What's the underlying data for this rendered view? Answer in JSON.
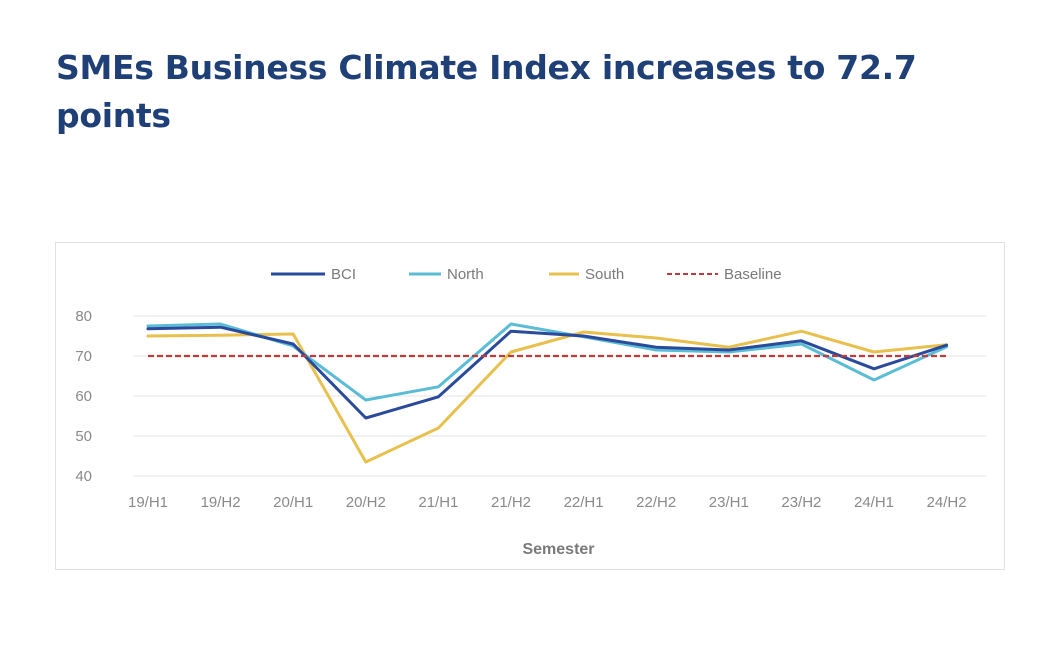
{
  "article": {
    "headline": "SMEs Business Climate Index increases to 72.7 points"
  },
  "chart_data": {
    "type": "line",
    "title": "",
    "xlabel": "Semester",
    "ylabel": "",
    "ylim": [
      40,
      80
    ],
    "yticks": [
      40,
      50,
      60,
      70,
      80
    ],
    "grid": true,
    "legend_position": "top-center",
    "categories": [
      "19/H1",
      "19/H2",
      "20/H1",
      "20/H2",
      "21/H1",
      "21/H2",
      "22/H1",
      "22/H2",
      "23/H1",
      "23/H2",
      "24/H1",
      "24/H2"
    ],
    "series": [
      {
        "name": "BCI",
        "color": "#2a4b9b",
        "style": "solid",
        "values": [
          76.8,
          77.2,
          73.0,
          54.5,
          59.8,
          76.2,
          75.0,
          72.2,
          71.5,
          73.8,
          66.8,
          72.7
        ]
      },
      {
        "name": "North",
        "color": "#5bbcd6",
        "style": "solid",
        "values": [
          77.5,
          78.0,
          72.5,
          59.0,
          62.3,
          78.0,
          74.8,
          71.5,
          71.0,
          73.0,
          64.0,
          72.3
        ]
      },
      {
        "name": "South",
        "color": "#e8c04e",
        "style": "solid",
        "values": [
          75.0,
          75.2,
          75.5,
          43.5,
          52.0,
          71.0,
          76.0,
          74.5,
          72.2,
          76.2,
          71.0,
          72.8
        ]
      },
      {
        "name": "Baseline",
        "color": "#c0393b",
        "style": "dashed",
        "values": [
          70,
          70,
          70,
          70,
          70,
          70,
          70,
          70,
          70,
          70,
          70,
          70
        ]
      }
    ]
  }
}
